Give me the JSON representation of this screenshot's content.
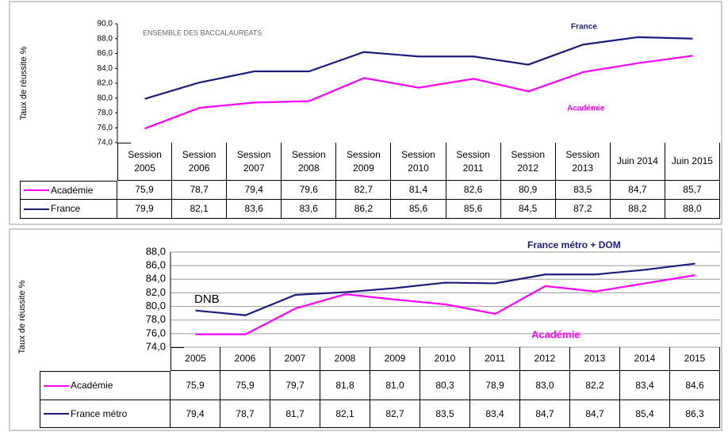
{
  "chart_data": [
    {
      "type": "line",
      "ylabel": "Taux de réussite %",
      "annotations": [
        "ENSEMBLE DES BACCALAUREATS",
        "France",
        "Académie"
      ],
      "categories": [
        "Session 2005",
        "Session 2006",
        "Session 2007",
        "Session 2008",
        "Session 2009",
        "Session 2010",
        "Session 2011",
        "Session 2012",
        "Session 2013",
        "Juin 2014",
        "Juin 2015"
      ],
      "series": [
        {
          "name": "Académie",
          "color": "#ff00ff",
          "values": [
            75.9,
            78.7,
            79.4,
            79.6,
            82.7,
            81.4,
            82.6,
            80.9,
            83.5,
            84.7,
            85.7
          ],
          "value_labels": [
            "75,9",
            "78,7",
            "79,4",
            "79,6",
            "82,7",
            "81,4",
            "82,6",
            "80,9",
            "83,5",
            "84,7",
            "85,7"
          ]
        },
        {
          "name": "France",
          "color": "#1c1c7c",
          "values": [
            79.9,
            82.1,
            83.6,
            83.6,
            86.2,
            85.6,
            85.6,
            84.5,
            87.2,
            88.2,
            88.0
          ],
          "value_labels": [
            "79,9",
            "82,1",
            "83,6",
            "83,6",
            "86,2",
            "85,6",
            "85,6",
            "84,5",
            "87,2",
            "88,2",
            "88,0"
          ]
        }
      ],
      "ylim": [
        74,
        90
      ],
      "yticks": [
        {
          "value": 74,
          "label": "74,0"
        },
        {
          "value": 76,
          "label": "76,0"
        },
        {
          "value": 78,
          "label": "78,0"
        },
        {
          "value": 80,
          "label": "80,0"
        },
        {
          "value": 82,
          "label": "82,0"
        },
        {
          "value": 84,
          "label": "84,0"
        },
        {
          "value": 86,
          "label": "86,0"
        },
        {
          "value": 88,
          "label": "88,0"
        },
        {
          "value": 90,
          "label": "90,0"
        }
      ],
      "grid": false
    },
    {
      "type": "line",
      "ylabel": "Taux de réussite %",
      "annotations": [
        "France métro + DOM",
        "DNB",
        "Académie"
      ],
      "categories": [
        "2005",
        "2006",
        "2007",
        "2008",
        "2009",
        "2010",
        "2011",
        "2012",
        "2013",
        "2014",
        "2015"
      ],
      "series": [
        {
          "name": "Académie",
          "color": "#ff00ff",
          "values": [
            75.9,
            75.9,
            79.7,
            81.8,
            81.0,
            80.3,
            78.9,
            83.0,
            82.2,
            83.4,
            84.6
          ],
          "value_labels": [
            "75,9",
            "75,9",
            "79,7",
            "81,8",
            "81,0",
            "80,3",
            "78,9",
            "83,0",
            "82,2",
            "83,4",
            "84,6"
          ]
        },
        {
          "name": "France métro",
          "color": "#1c1c7c",
          "values": [
            79.4,
            78.7,
            81.7,
            82.1,
            82.7,
            83.5,
            83.4,
            84.7,
            84.7,
            85.4,
            86.3
          ],
          "value_labels": [
            "79,4",
            "78,7",
            "81,7",
            "82,1",
            "82,7",
            "83,5",
            "83,4",
            "84,7",
            "84,7",
            "85,4",
            "86,3"
          ]
        }
      ],
      "ylim": [
        74,
        88
      ],
      "yticks": [
        {
          "value": 74,
          "label": "74,0"
        },
        {
          "value": 76,
          "label": "76,0"
        },
        {
          "value": 78,
          "label": "78,0"
        },
        {
          "value": 80,
          "label": "80,0"
        },
        {
          "value": 82,
          "label": "82,0"
        },
        {
          "value": 84,
          "label": "84,0"
        },
        {
          "value": 86,
          "label": "86,0"
        },
        {
          "value": 88,
          "label": "88,0"
        }
      ],
      "grid": true
    }
  ]
}
